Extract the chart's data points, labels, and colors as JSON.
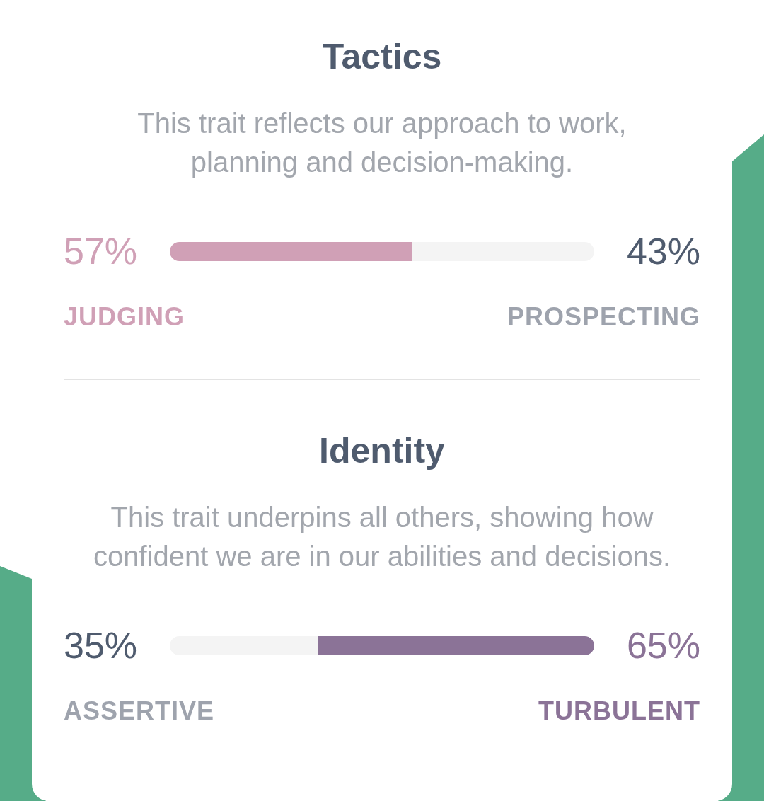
{
  "chart_data": [
    {
      "type": "bar",
      "orientation": "horizontal",
      "stacked": true,
      "title": "Tactics",
      "subtitle": "This trait reflects our approach to work, planning and decision-making.",
      "categories": [
        null
      ],
      "tick_labels": false,
      "series": [
        {
          "name": "JUDGING",
          "color": "#d0a0b6",
          "values": [
            57
          ],
          "value_labels": [
            "57%"
          ]
        },
        {
          "name": "PROSPECTING",
          "color": "#f4f4f4",
          "values": [
            43
          ],
          "value_labels": [
            "43%"
          ]
        }
      ]
    },
    {
      "type": "bar",
      "orientation": "horizontal",
      "stacked": true,
      "title": "Identity",
      "subtitle": "This trait underpins all others, showing how confident we are in our abilities and decisions.",
      "categories": [
        null
      ],
      "tick_labels": false,
      "series": [
        {
          "name": "ASSERTIVE",
          "color": "#f4f4f4",
          "values": [
            35
          ],
          "value_labels": [
            "35%"
          ]
        },
        {
          "name": "TURBULENT",
          "color": "#8b7397",
          "values": [
            65
          ],
          "value_labels": [
            "65%"
          ]
        }
      ]
    }
  ]
}
